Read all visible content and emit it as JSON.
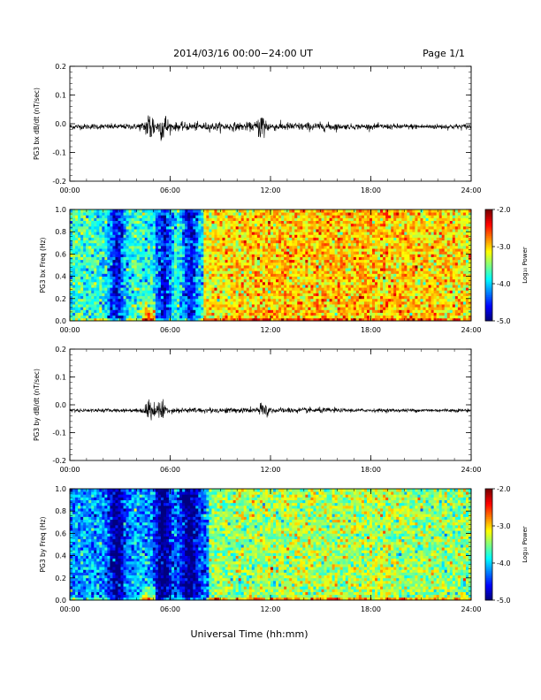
{
  "header": {
    "title": "2014/03/16  00:00−24:00 UT",
    "page": "Page 1/1"
  },
  "footer": {
    "xlabel": "Universal Time (hh:mm)"
  },
  "time_ticks": [
    "00:00",
    "06:00",
    "12:00",
    "18:00",
    "24:00"
  ],
  "colorbar": {
    "label": "Log₁₀ Power",
    "ticks": [
      "-2.0",
      "-3.0",
      "-4.0",
      "-5.0"
    ],
    "range": [
      -5.0,
      -2.0
    ]
  },
  "chart_data": [
    {
      "type": "line",
      "ylabel": "PG3 bx dB/dt (nT/sec)",
      "yticks": [
        "0.2",
        "0.1",
        "0.0",
        "-0.1",
        "-0.2"
      ],
      "xlim": [
        0,
        24
      ],
      "ylim": [
        -0.2,
        0.2
      ],
      "baseline": -0.01,
      "bursts": [
        {
          "t": 4.8,
          "amp": 0.06
        },
        {
          "t": 5.6,
          "amp": 0.05
        },
        {
          "t": 11.5,
          "amp": 0.05
        }
      ],
      "noise_amp": 0.006
    },
    {
      "type": "heatmap",
      "ylabel": "PG3 bx Freq (Hz)",
      "yticks": [
        "1.0",
        "0.8",
        "0.6",
        "0.4",
        "0.2",
        "0.0"
      ],
      "xlim": [
        0,
        24
      ],
      "ylim": [
        0.0,
        1.0
      ],
      "zlim": [
        -5.0,
        -2.0
      ],
      "background_level": -3.4,
      "late_level": -3.1,
      "dark_bands": [
        {
          "t": 2.8,
          "w": 0.5
        },
        {
          "t": 5.6,
          "w": 0.5
        },
        {
          "t": 7.2,
          "w": 0.5
        }
      ],
      "quiet_until": 8.0
    },
    {
      "type": "line",
      "ylabel": "PG3 by dB/dt (nT/sec)",
      "yticks": [
        "0.2",
        "0.1",
        "0.0",
        "-0.1",
        "-0.2"
      ],
      "xlim": [
        0,
        24
      ],
      "ylim": [
        -0.2,
        0.2
      ],
      "baseline": -0.02,
      "bursts": [
        {
          "t": 4.8,
          "amp": 0.04
        },
        {
          "t": 5.5,
          "amp": 0.04
        },
        {
          "t": 11.6,
          "amp": 0.03
        }
      ],
      "noise_amp": 0.004
    },
    {
      "type": "heatmap",
      "ylabel": "PG3 by Freq (Hz)",
      "yticks": [
        "1.0",
        "0.8",
        "0.6",
        "0.4",
        "0.2",
        "0.0"
      ],
      "xlim": [
        0,
        24
      ],
      "ylim": [
        0.0,
        1.0
      ],
      "zlim": [
        -5.0,
        -2.0
      ],
      "background_level": -3.8,
      "late_level": -3.5,
      "dark_bands": [
        {
          "t": 2.8,
          "w": 0.5
        },
        {
          "t": 5.6,
          "w": 0.5
        },
        {
          "t": 7.2,
          "w": 0.6
        }
      ],
      "quiet_until": 8.3
    }
  ]
}
